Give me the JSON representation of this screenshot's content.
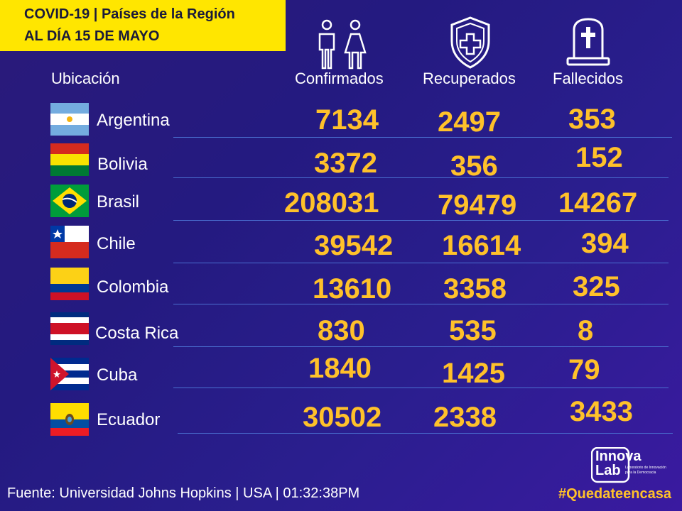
{
  "header": {
    "title_line1": "COVID-19 | Países de la Región",
    "title_line2": "AL DÍA 15 DE MAYO"
  },
  "columns": {
    "location": "Ubicación",
    "confirmed": "Confirmados",
    "recovered": "Recuperados",
    "deceased": "Fallecidos"
  },
  "icons": [
    "people-icon",
    "shield-cross-icon",
    "tombstone-icon"
  ],
  "rows": [
    {
      "country": "Argentina",
      "confirmed": "7134",
      "recovered": "2497",
      "deceased": "353"
    },
    {
      "country": "Bolivia",
      "confirmed": "3372",
      "recovered": "356",
      "deceased": "152"
    },
    {
      "country": "Brasil",
      "confirmed": "208031",
      "recovered": "79479",
      "deceased": "14267"
    },
    {
      "country": "Chile",
      "confirmed": "39542",
      "recovered": "16614",
      "deceased": "394"
    },
    {
      "country": "Colombia",
      "confirmed": "13610",
      "recovered": "3358",
      "deceased": "325"
    },
    {
      "country": "Costa Rica",
      "confirmed": "830",
      "recovered": "535",
      "deceased": "8"
    },
    {
      "country": "Cuba",
      "confirmed": "1840",
      "recovered": "1425",
      "deceased": "79"
    },
    {
      "country": "Ecuador",
      "confirmed": "30502",
      "recovered": "2338",
      "deceased": "3433"
    }
  ],
  "footer": {
    "source": "Fuente:  Universidad Johns Hopkins | USA | 01:32:38PM",
    "hashtag": "#Quedateencasa"
  },
  "logo": {
    "line1": "Innova",
    "line2": "Lab",
    "tagline1": "Laboratorio de Innovación",
    "tagline2": "para la Democracia"
  },
  "colors": {
    "accent_yellow": "#ffe600",
    "number_gold": "#ffc12a",
    "background": "#2a1e8e",
    "row_line": "#4a6fd0"
  }
}
